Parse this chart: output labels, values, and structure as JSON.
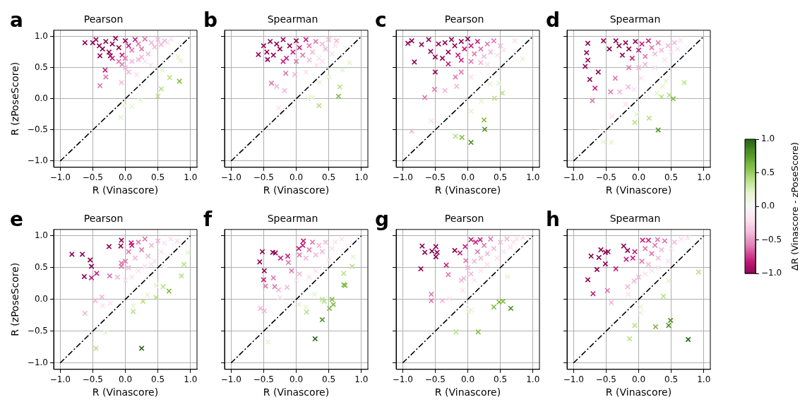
{
  "chart_data": [
    {
      "type": "scatter",
      "title": "Pearson",
      "annotations": [
        "a"
      ],
      "xlabel": "R (Vinascore)",
      "ylabel": "R (zPoseScore)",
      "xlim": [
        -1.1,
        1.1
      ],
      "ylim": [
        -1.1,
        1.1
      ],
      "xticks": [
        {
          "value": -1,
          "label": "−1.0"
        },
        {
          "value": -0.5,
          "label": "−0.5"
        },
        {
          "value": 0,
          "label": "0.0"
        },
        {
          "value": 0.5,
          "label": "0.5"
        },
        {
          "value": 1,
          "label": "1.0"
        }
      ],
      "yticks": [
        {
          "value": -1,
          "label": "−1.0"
        },
        {
          "value": -0.5,
          "label": "−0.5"
        },
        {
          "value": 0,
          "label": "0.0"
        },
        0.5,
        {
          "value": 1,
          "label": "1.0"
        }
      ],
      "grid": true,
      "series": [
        {
          "marker": "cross",
          "x": [
            -0.62,
            -0.39,
            -0.31,
            -0.3,
            -0.39,
            -0.23,
            -0.06,
            0.05,
            0.17,
            0.25,
            0.23,
            0.1,
            -0.01,
            -0.07,
            -0.26,
            0.5,
            0.55,
            0.68,
            0.83,
            0.85,
            0.81,
            0.57,
            0.39,
            0.25,
            0.83,
            -0.5,
            -0.45,
            -0.4,
            -0.35,
            -0.3,
            -0.25,
            -0.2,
            -0.15,
            -0.1,
            -0.05,
            0,
            0.05,
            0.1,
            0.15,
            0.2,
            0.25,
            0.3,
            0.35,
            0.4,
            0.45,
            0.5,
            0.55,
            0.6,
            0.65,
            0.7,
            -0.2,
            -0.1,
            0,
            0.1,
            0.2,
            0.3,
            -0.05,
            0
          ],
          "values": [
            0.9,
            0.69,
            0.46,
            0.35,
            0.21,
            0.69,
            0.26,
            0.43,
            0.39,
            0.2,
            -0.02,
            -0.12,
            -0.11,
            -0.3,
            -0.24,
            0.04,
            0.16,
            0.34,
            0.28,
            0.61,
            0.67,
            0.46,
            0.54,
            0.67,
            0.87,
            0.9,
            0.95,
            0.85,
            0.8,
            0.92,
            0.75,
            0.88,
            0.97,
            0.82,
            0.7,
            0.93,
            0.85,
            0.78,
            0.95,
            0.88,
            0.8,
            0.96,
            0.72,
            0.9,
            0.83,
            0.95,
            0.87,
            0.93,
            0.9,
            0.96,
            0.65,
            0.6,
            0.65,
            0.6,
            0.63,
            0.6,
            0.55,
            0.5
          ],
          "colors": [
            "#8e0152",
            "#8e0152",
            "#c51b7d",
            "#de77ae",
            "#de77ae",
            "#8e0152",
            "#f1b6da",
            "#f1b6da",
            "#fde0ef",
            "#f7f7f7",
            "#e6f5d0",
            "#e6f5d0",
            "#e6f5d0",
            "#e6f5d0",
            "#f7f7f7",
            "#b8e186",
            "#b8e186",
            "#b8e186",
            "#7fbc41",
            "#e6f5d0",
            "#e6f5d0",
            "#e6f5d0",
            "#fde0ef",
            "#f1b6da",
            "#f7f7f7",
            "#8e0152",
            "#8e0152",
            "#8e0152",
            "#8e0152",
            "#8e0152",
            "#8e0152",
            "#8e0152",
            "#8e0152",
            "#8e0152",
            "#c51b7d",
            "#8e0152",
            "#c51b7d",
            "#de77ae",
            "#c51b7d",
            "#de77ae",
            "#de77ae",
            "#de77ae",
            "#f1b6da",
            "#f1b6da",
            "#f1b6da",
            "#f1b6da",
            "#f1b6da",
            "#f1b6da",
            "#fde0ef",
            "#fde0ef",
            "#c51b7d",
            "#de77ae",
            "#de77ae",
            "#f1b6da",
            "#f1b6da",
            "#fde0ef",
            "#de77ae",
            "#f1b6da"
          ]
        },
        {
          "type": "line",
          "marker": "none",
          "x": [
            -1,
            1
          ],
          "values": [
            -1,
            1
          ],
          "color": "#000000",
          "line_style": "dashed"
        }
      ]
    },
    {
      "type": "scatter",
      "title": "Spearman",
      "annotations": [
        "b"
      ],
      "xlabel": "R (Vinascore)",
      "xlim": [
        -1.1,
        1.1
      ],
      "ylim": [
        -1.1,
        1.1
      ],
      "tick_labels": "x",
      "xticks": [
        {
          "value": -1,
          "label": "−1.0"
        },
        {
          "value": -0.5,
          "label": "−0.5"
        },
        {
          "value": 0,
          "label": "0.0"
        },
        {
          "value": 0.5,
          "label": "0.5"
        },
        {
          "value": 1,
          "label": "1.0"
        }
      ],
      "yticks": [
        -1,
        -0.5,
        0,
        0.5,
        1
      ],
      "grid": true,
      "series": [
        {
          "marker": "cross",
          "x": [
            -0.58,
            -0.44,
            -0.38,
            -0.3,
            -0.18,
            -0.16,
            -0.27,
            0.04,
            0.18,
            0.25,
            0.35,
            0.36,
            0.51,
            0.67,
            0.65,
            0.71,
            0.82,
            -0.02,
            0.15,
            0.31,
            0.62,
            0.75,
            -0.5,
            -0.45,
            -0.4,
            -0.35,
            -0.3,
            -0.25,
            -0.2,
            -0.15,
            -0.1,
            -0.05,
            0,
            0.05,
            0.1,
            0.15,
            0.2,
            0.25,
            0.3,
            0.35,
            0.4,
            0.45,
            0.5,
            0.55,
            0.6,
            -0.2,
            0,
            0.2,
            0.4
          ],
          "values": [
            0.71,
            0.63,
            0.25,
            0.2,
            0.13,
            0.41,
            -0.15,
            -0.04,
            0,
            0.02,
            -0.11,
            0.26,
            0.35,
            0.19,
            0.04,
            0.46,
            0.58,
            0.39,
            0.43,
            0.54,
            0.93,
            0.81,
            0.85,
            0.75,
            0.92,
            0.7,
            0.88,
            0.8,
            0.95,
            0.65,
            0.85,
            0.75,
            0.93,
            0.82,
            0.7,
            0.95,
            0.85,
            0.75,
            0.92,
            0.65,
            0.88,
            0.8,
            0.95,
            0.72,
            0.85,
            0.6,
            0.6,
            0.62,
            0.6
          ],
          "colors": [
            "#8e0152",
            "#8e0152",
            "#de77ae",
            "#f1b6da",
            "#f1b6da",
            "#de77ae",
            "#fde0ef",
            "#f7f7f7",
            "#e6f5d0",
            "#e6f5d0",
            "#b8e186",
            "#e6f5d0",
            "#e6f5d0",
            "#b8e186",
            "#7fbc41",
            "#e6f5d0",
            "#e6f5d0",
            "#f1b6da",
            "#fde0ef",
            "#fde0ef",
            "#f1b6da",
            "#f7f7f7",
            "#8e0152",
            "#8e0152",
            "#8e0152",
            "#8e0152",
            "#8e0152",
            "#8e0152",
            "#8e0152",
            "#c51b7d",
            "#8e0152",
            "#c51b7d",
            "#8e0152",
            "#c51b7d",
            "#de77ae",
            "#c51b7d",
            "#de77ae",
            "#f1b6da",
            "#de77ae",
            "#fde0ef",
            "#f1b6da",
            "#f1b6da",
            "#f1b6da",
            "#fde0ef",
            "#fde0ef",
            "#c51b7d",
            "#de77ae",
            "#f1b6da",
            "#fde0ef"
          ]
        },
        {
          "type": "line",
          "marker": "none",
          "x": [
            -1,
            1
          ],
          "values": [
            -1,
            1
          ],
          "color": "#000000",
          "line_style": "dashed"
        }
      ]
    },
    {
      "type": "scatter",
      "title": "Pearson",
      "annotations": [
        "c"
      ],
      "xlabel": "R (Vinascore)",
      "xlim": [
        -1.1,
        1.1
      ],
      "ylim": [
        -1.1,
        1.1
      ],
      "tick_labels": "x",
      "xticks": [
        {
          "value": -1,
          "label": "−1.0"
        },
        {
          "value": -0.5,
          "label": "−0.5"
        },
        {
          "value": 0,
          "label": "0.0"
        },
        {
          "value": 0.5,
          "label": "0.5"
        },
        {
          "value": 1,
          "label": "1.0"
        }
      ],
      "yticks": [
        -1,
        -0.5,
        0,
        0.5,
        1
      ],
      "grid": true,
      "series": [
        {
          "marker": "cross",
          "x": [
            -0.92,
            -0.86,
            -0.71,
            -0.82,
            -0.57,
            -0.5,
            -0.5,
            -0.51,
            -0.66,
            -0.35,
            -0.17,
            -0.19,
            -0.1,
            0.05,
            0.16,
            0.34,
            0.48,
            0.53,
            0.41,
            0.21,
            0.05,
            0.25,
            0.26,
            0.05,
            -0.09,
            -0.19,
            -0.56,
            -0.86,
            0.84,
            0.72,
            -0.3,
            -0.39,
            -0.35,
            -0.3,
            -0.25,
            -0.2,
            -0.15,
            -0.1,
            -0.05,
            0,
            0.05,
            0.1,
            0.15,
            0.2,
            0.25,
            0.3,
            0.35,
            0.4,
            0.45,
            0.5,
            0.55,
            -0.1,
            0.05,
            0.2,
            0.3,
            -0.6,
            -0.45
          ],
          "values": [
            0.89,
            0.93,
            0.87,
            0.59,
            0.76,
            0.67,
            0.43,
            0.15,
            0.02,
            0.13,
            0.2,
            0.35,
            0.43,
            0.35,
            0.22,
            0.24,
            0.25,
            0.09,
            0.01,
            -0.04,
            -0.2,
            -0.34,
            -0.49,
            -0.7,
            -0.62,
            -0.6,
            -0.35,
            -0.52,
            0.64,
            0.93,
            0.56,
            0.65,
            0.9,
            0.75,
            0.95,
            0.85,
            0.7,
            0.92,
            0.8,
            0.96,
            0.85,
            0.72,
            0.92,
            0.8,
            0.68,
            0.88,
            0.75,
            0.93,
            0.7,
            0.85,
            0.78,
            0.62,
            0.6,
            0.58,
            0.55,
            0.95,
            0.88
          ],
          "colors": [
            "#8e0152",
            "#8e0152",
            "#8e0152",
            "#8e0152",
            "#8e0152",
            "#8e0152",
            "#8e0152",
            "#de77ae",
            "#de77ae",
            "#f1b6da",
            "#f1b6da",
            "#de77ae",
            "#de77ae",
            "#fde0ef",
            "#f7f7f7",
            "#e6f5d0",
            "#e6f5d0",
            "#b8e186",
            "#b8e186",
            "#e6f5d0",
            "#e6f5d0",
            "#7fbc41",
            "#4d9221",
            "#4d9221",
            "#7fbc41",
            "#b8e186",
            "#fde0ef",
            "#f1b6da",
            "#e6f5d0",
            "#fde0ef",
            "#c51b7d",
            "#8e0152",
            "#8e0152",
            "#8e0152",
            "#8e0152",
            "#8e0152",
            "#c51b7d",
            "#8e0152",
            "#c51b7d",
            "#8e0152",
            "#c51b7d",
            "#de77ae",
            "#c51b7d",
            "#de77ae",
            "#f1b6da",
            "#de77ae",
            "#f1b6da",
            "#de77ae",
            "#fde0ef",
            "#f1b6da",
            "#fde0ef",
            "#c51b7d",
            "#de77ae",
            "#f1b6da",
            "#fde0ef",
            "#8e0152",
            "#8e0152"
          ]
        },
        {
          "type": "line",
          "marker": "none",
          "x": [
            -1,
            1
          ],
          "values": [
            -1,
            1
          ],
          "color": "#000000",
          "line_style": "dashed"
        }
      ]
    },
    {
      "type": "scatter",
      "title": "Spearman",
      "annotations": [
        "d"
      ],
      "xlabel": "R (Vinascore)",
      "xlim": [
        -1.1,
        1.1
      ],
      "ylim": [
        -1.1,
        1.1
      ],
      "tick_labels": "x",
      "xticks": [
        {
          "value": -1,
          "label": "−1.0"
        },
        {
          "value": -0.5,
          "label": "−0.5"
        },
        {
          "value": 0,
          "label": "0.0"
        },
        {
          "value": 0.5,
          "label": "0.5"
        },
        {
          "value": 1,
          "label": "1.0"
        }
      ],
      "yticks": [
        -1,
        -0.5,
        0,
        0.5,
        1
      ],
      "grid": true,
      "series": [
        {
          "marker": "cross",
          "x": [
            -0.78,
            -0.8,
            -0.78,
            -0.82,
            -0.62,
            -0.75,
            -0.67,
            -0.71,
            -0.54,
            -0.36,
            -0.43,
            -0.29,
            -0.16,
            -0.07,
            0.04,
            -0.2,
            -0.41,
            -0.56,
            -0.54,
            -0.42,
            -0.06,
            -0.03,
            0.16,
            0.3,
            0.13,
            0.28,
            0.35,
            0.47,
            0.53,
            0.42,
            0.37,
            0.7,
            0.64,
            0.75,
            -0.3,
            -0.25,
            -0.2,
            -0.15,
            -0.1,
            -0.05,
            0,
            0.05,
            0.1,
            0.15,
            0.2,
            0.25,
            0.3,
            0.35,
            0.4,
            0.45,
            0.5,
            0.55,
            0.6,
            -0.15,
            0,
            0.1,
            0.25,
            -0.35,
            -0.45
          ],
          "values": [
            0.89,
            0.74,
            0.62,
            0.52,
            0.43,
            0.31,
            0.17,
            -0.03,
            0.93,
            0.33,
            0.11,
            0.11,
            0.19,
            0.15,
            0.33,
            -0.09,
            -0.28,
            -0.46,
            -0.69,
            -0.7,
            -0.38,
            -0.25,
            -0.31,
            -0.5,
            0.06,
            0.09,
            0.03,
            0.06,
            0,
            0.28,
            0.2,
            0.26,
            0.94,
            0.83,
            0.85,
            0.7,
            0.9,
            0.8,
            0.65,
            0.92,
            0.78,
            0.88,
            0.68,
            0.93,
            0.82,
            0.72,
            0.9,
            0.78,
            0.62,
            0.85,
            0.75,
            0.9,
            0.8,
            0.5,
            0.5,
            0.55,
            0.5,
            0.93,
            0.8
          ],
          "colors": [
            "#8e0152",
            "#8e0152",
            "#8e0152",
            "#8e0152",
            "#8e0152",
            "#8e0152",
            "#c51b7d",
            "#de77ae",
            "#8e0152",
            "#de77ae",
            "#de77ae",
            "#f1b6da",
            "#f1b6da",
            "#fde0ef",
            "#fde0ef",
            "#fde0ef",
            "#fde0ef",
            "#f7f7f7",
            "#e6f5d0",
            "#e6f5d0",
            "#b8e186",
            "#e6f5d0",
            "#b8e186",
            "#4d9221",
            "#f7f7f7",
            "#e6f5d0",
            "#b8e186",
            "#b8e186",
            "#7fbc41",
            "#e6f5d0",
            "#e6f5d0",
            "#b8e186",
            "#fde0ef",
            "#f7f7f7",
            "#8e0152",
            "#8e0152",
            "#8e0152",
            "#8e0152",
            "#c51b7d",
            "#8e0152",
            "#c51b7d",
            "#c51b7d",
            "#de77ae",
            "#c51b7d",
            "#de77ae",
            "#f1b6da",
            "#de77ae",
            "#f1b6da",
            "#fde0ef",
            "#f1b6da",
            "#fde0ef",
            "#f1b6da",
            "#fde0ef",
            "#de77ae",
            "#f1b6da",
            "#f1b6da",
            "#fde0ef",
            "#8e0152",
            "#8e0152"
          ]
        },
        {
          "type": "line",
          "marker": "none",
          "x": [
            -1,
            1
          ],
          "values": [
            -1,
            1
          ],
          "color": "#000000",
          "line_style": "dashed"
        }
      ]
    },
    {
      "type": "scatter",
      "title": "Pearson",
      "annotations": [
        "e"
      ],
      "xlabel": "R (Vinascore)",
      "ylabel": "R (zPoseScore)",
      "xlim": [
        -1.1,
        1.1
      ],
      "ylim": [
        -1.1,
        1.1
      ],
      "xticks": [
        {
          "value": -1,
          "label": "−1.0"
        },
        {
          "value": -0.5,
          "label": "−0.5"
        },
        {
          "value": 0,
          "label": "0.0"
        },
        {
          "value": 0.5,
          "label": "0.5"
        },
        {
          "value": 1,
          "label": "1.0"
        }
      ],
      "yticks": [
        {
          "value": -1,
          "label": "−1.0"
        },
        {
          "value": -0.5,
          "label": "−0.5"
        },
        {
          "value": 0,
          "label": "0.0"
        },
        0.5,
        {
          "value": 1,
          "label": "1.0"
        }
      ],
      "grid": true,
      "series": [
        {
          "marker": "cross",
          "x": [
            -0.82,
            -0.66,
            -0.54,
            -0.52,
            -0.63,
            -0.52,
            -0.44,
            -0.25,
            -0.06,
            -0.07,
            -0.24,
            -0.12,
            -0.06,
            -0.06,
            0.09,
            -0.46,
            -0.36,
            -0.35,
            -0.23,
            -0.62,
            -0.32,
            -0.3,
            -0.45,
            0.25,
            0.12,
            0.12,
            -0.04,
            0.27,
            0.34,
            0.47,
            0.47,
            0.58,
            0.67,
            0.86,
            0.9,
            0.96,
            0.61,
            0.39,
            0,
            0.05,
            0.1,
            0.15,
            0.2,
            0.25,
            0.3,
            0.35,
            0.4,
            0.45,
            0.5,
            0.55,
            0.6,
            0.65,
            0.7,
            0.75,
            0.8,
            0.05,
            0.2,
            0.3,
            0.4,
            0.1,
            0.15,
            0
          ],
          "values": [
            0.71,
            0.71,
            0.62,
            0.52,
            0.36,
            0.34,
            0.41,
            0.83,
            0.93,
            0.84,
            0.37,
            0.35,
            0.52,
            0.57,
            0.89,
            -0.02,
            0.04,
            -0.1,
            -0.06,
            -0.22,
            -0.41,
            -0.52,
            -0.77,
            -0.77,
            -0.19,
            -0.1,
            -0.13,
            -0.03,
            0.07,
            0.03,
            0.22,
            0.2,
            0.13,
            0.37,
            0.55,
            0.74,
            0.52,
            0.41,
            0.6,
            0.75,
            0.85,
            0.65,
            0.9,
            0.78,
            0.95,
            0.68,
            0.85,
            0.6,
            0.92,
            0.75,
            0.88,
            0.7,
            0.95,
            0.85,
            0.92,
            0.5,
            0.45,
            0.52,
            0.55,
            0.35,
            0.2,
            0.3
          ],
          "colors": [
            "#8e0152",
            "#8e0152",
            "#8e0152",
            "#8e0152",
            "#8e0152",
            "#c51b7d",
            "#c51b7d",
            "#8e0152",
            "#8e0152",
            "#8e0152",
            "#de77ae",
            "#f1b6da",
            "#de77ae",
            "#de77ae",
            "#c51b7d",
            "#f1b6da",
            "#f1b6da",
            "#fde0ef",
            "#fde0ef",
            "#f1b6da",
            "#f7f7f7",
            "#e6f5d0",
            "#b8e186",
            "#276419",
            "#b8e186",
            "#e6f5d0",
            "#f7f7f7",
            "#b8e186",
            "#e6f5d0",
            "#b8e186",
            "#e6f5d0",
            "#b8e186",
            "#7fbc41",
            "#b8e186",
            "#b8e186",
            "#e6f5d0",
            "#f7f7f7",
            "#f7f7f7",
            "#de77ae",
            "#de77ae",
            "#c51b7d",
            "#f1b6da",
            "#de77ae",
            "#de77ae",
            "#de77ae",
            "#f1b6da",
            "#f1b6da",
            "#fde0ef",
            "#f1b6da",
            "#fde0ef",
            "#fde0ef",
            "#f7f7f7",
            "#fde0ef",
            "#f7f7f7",
            "#fde0ef",
            "#f1b6da",
            "#fde0ef",
            "#fde0ef",
            "#fde0ef",
            "#fde0ef",
            "#f7f7f7",
            "#fde0ef"
          ]
        },
        {
          "type": "line",
          "marker": "none",
          "x": [
            -1,
            1
          ],
          "values": [
            -1,
            1
          ],
          "color": "#000000",
          "line_style": "dashed"
        }
      ]
    },
    {
      "type": "scatter",
      "title": "Spearman",
      "annotations": [
        "f"
      ],
      "xlabel": "R (Vinascore)",
      "xlim": [
        -1.1,
        1.1
      ],
      "ylim": [
        -1.1,
        1.1
      ],
      "tick_labels": "x",
      "xticks": [
        {
          "value": -1,
          "label": "−1.0"
        },
        {
          "value": -0.5,
          "label": "−0.5"
        },
        {
          "value": 0,
          "label": "0.0"
        },
        {
          "value": 0.5,
          "label": "0.5"
        },
        {
          "value": 1,
          "label": "1.0"
        }
      ],
      "yticks": [
        -1,
        -0.5,
        0,
        0.5,
        1
      ],
      "grid": true,
      "series": [
        {
          "marker": "cross",
          "x": [
            -0.56,
            -0.52,
            -0.36,
            -0.32,
            -0.24,
            -0.49,
            -0.5,
            -0.47,
            -0.35,
            -0.33,
            -0.27,
            -0.25,
            -0.55,
            -0.49,
            -0.33,
            -0.43,
            -0.13,
            -0.12,
            -0.07,
            -0.14,
            0.11,
            0.04,
            -0.16,
            0.04,
            0.15,
            0.16,
            0.28,
            0.4,
            0.43,
            0.4,
            0.29,
            0.51,
            0.57,
            0.55,
            0.73,
            0.75,
            0.73,
            0.86,
            0.87,
            0.8,
            0.05,
            0.1,
            0.15,
            0.2,
            0.25,
            0.3,
            0.35,
            0.4,
            0.45,
            0.5,
            0.55,
            0.6,
            0.7,
            0,
            0.05,
            0.2,
            0.3,
            0.4
          ],
          "values": [
            0.59,
            0.75,
            0.74,
            0.73,
            0.65,
            0.45,
            0.31,
            0.21,
            0.34,
            0.2,
            0.15,
            0.03,
            -0.14,
            -0.18,
            -0.41,
            -0.67,
            0.68,
            0.58,
            0.45,
            0.19,
            0.92,
            0.8,
            -0.08,
            -0.08,
            -0.12,
            -0.2,
            0.08,
            0,
            -0.03,
            -0.32,
            -0.62,
            -0.14,
            -0.08,
            0,
            0.23,
            0.22,
            0.41,
            0.52,
            0.67,
            0.87,
            0.7,
            0.85,
            0.65,
            0.78,
            0.9,
            0.7,
            0.85,
            0.75,
            0.9,
            0.62,
            0.8,
            0.9,
            0.95,
            0.3,
            0.4,
            0.35,
            0.45,
            0.5
          ],
          "colors": [
            "#8e0152",
            "#8e0152",
            "#8e0152",
            "#8e0152",
            "#c51b7d",
            "#8e0152",
            "#c51b7d",
            "#de77ae",
            "#de77ae",
            "#de77ae",
            "#f1b6da",
            "#fde0ef",
            "#f1b6da",
            "#f1b6da",
            "#f7f7f7",
            "#e6f5d0",
            "#c51b7d",
            "#de77ae",
            "#de77ae",
            "#f1b6da",
            "#c51b7d",
            "#c51b7d",
            "#f7f7f7",
            "#e6f5d0",
            "#e6f5d0",
            "#b8e186",
            "#e6f5d0",
            "#b8e186",
            "#b8e186",
            "#4d9221",
            "#276419",
            "#7fbc41",
            "#7fbc41",
            "#7fbc41",
            "#7fbc41",
            "#7fbc41",
            "#b8e186",
            "#b8e186",
            "#e6f5d0",
            "#f7f7f7",
            "#de77ae",
            "#c51b7d",
            "#f1b6da",
            "#de77ae",
            "#de77ae",
            "#f1b6da",
            "#f1b6da",
            "#f1b6da",
            "#f1b6da",
            "#fde0ef",
            "#fde0ef",
            "#fde0ef",
            "#fde0ef",
            "#fde0ef",
            "#f1b6da",
            "#fde0ef",
            "#fde0ef",
            "#f7f7f7"
          ]
        },
        {
          "type": "line",
          "marker": "none",
          "x": [
            -1,
            1
          ],
          "values": [
            -1,
            1
          ],
          "color": "#000000",
          "line_style": "dashed"
        }
      ]
    },
    {
      "type": "scatter",
      "title": "Pearson",
      "annotations": [
        "g"
      ],
      "xlabel": "R (Vinascore)",
      "xlim": [
        -1.1,
        1.1
      ],
      "ylim": [
        -1.1,
        1.1
      ],
      "tick_labels": "x",
      "xticks": [
        {
          "value": -1,
          "label": "−1.0"
        },
        {
          "value": -0.5,
          "label": "−0.5"
        },
        {
          "value": 0,
          "label": "0.0"
        },
        {
          "value": 0.5,
          "label": "0.5"
        },
        {
          "value": 1,
          "label": "1.0"
        }
      ],
      "yticks": [
        -1,
        -0.5,
        0,
        0.5,
        1
      ],
      "grid": true,
      "series": [
        {
          "marker": "cross",
          "x": [
            -0.7,
            -0.66,
            -0.72,
            -0.55,
            -0.49,
            -0.47,
            -0.49,
            -0.33,
            -0.3,
            -0.2,
            -0.12,
            -0.04,
            -0.03,
            -0.56,
            -0.56,
            -0.39,
            -0.28,
            -0.06,
            -0.08,
            -0.03,
            0.01,
            0.05,
            -0.18,
            0.16,
            0.4,
            0.48,
            0.54,
            0.66,
            0.61,
            0.41,
            0.05,
            0.12,
            0.19,
            0.15,
            0.2,
            0.25,
            0.3,
            0.35,
            0.4,
            0.45,
            0.5,
            0.55,
            0.6,
            0.65,
            0.7,
            0.75,
            0.85,
            0,
            0.05,
            0.1,
            0.2,
            0.3,
            -0.1,
            0.1
          ],
          "values": [
            0.84,
            0.74,
            0.48,
            0.76,
            0.83,
            0.74,
            0.67,
            0.54,
            0.39,
            0.77,
            0.73,
            0.83,
            0.61,
            0.08,
            -0.02,
            -0.02,
            0.01,
            0.33,
            0.14,
            -0.12,
            -0.19,
            -0.17,
            -0.51,
            -0.51,
            -0.12,
            -0.04,
            -0.03,
            -0.14,
            0.36,
            0.35,
            0.94,
            0.9,
            0.94,
            0.75,
            0.65,
            0.85,
            0.72,
            0.95,
            0.8,
            0.65,
            0.9,
            0.75,
            0.95,
            0.82,
            0.9,
            0.95,
            0.97,
            0.5,
            0.4,
            0.3,
            0.45,
            0.55,
            0.3,
            0.6
          ],
          "colors": [
            "#8e0152",
            "#8e0152",
            "#8e0152",
            "#8e0152",
            "#8e0152",
            "#8e0152",
            "#8e0152",
            "#c51b7d",
            "#de77ae",
            "#8e0152",
            "#c51b7d",
            "#c51b7d",
            "#de77ae",
            "#de77ae",
            "#de77ae",
            "#f1b6da",
            "#fde0ef",
            "#f1b6da",
            "#fde0ef",
            "#f7f7f7",
            "#e6f5d0",
            "#e6f5d0",
            "#b8e186",
            "#7fbc41",
            "#7fbc41",
            "#7fbc41",
            "#7fbc41",
            "#4d9221",
            "#e6f5d0",
            "#f7f7f7",
            "#c51b7d",
            "#c51b7d",
            "#c51b7d",
            "#de77ae",
            "#f1b6da",
            "#de77ae",
            "#f1b6da",
            "#de77ae",
            "#f1b6da",
            "#fde0ef",
            "#f1b6da",
            "#fde0ef",
            "#f1b6da",
            "#fde0ef",
            "#fde0ef",
            "#fde0ef",
            "#fde0ef",
            "#f1b6da",
            "#f1b6da",
            "#fde0ef",
            "#fde0ef",
            "#fde0ef",
            "#f1b6da",
            "#f1b6da"
          ]
        },
        {
          "type": "line",
          "marker": "none",
          "x": [
            -1,
            1
          ],
          "values": [
            -1,
            1
          ],
          "color": "#000000",
          "line_style": "dashed"
        }
      ]
    },
    {
      "type": "scatter",
      "title": "Spearman",
      "annotations": [
        "h"
      ],
      "xlabel": "R (Vinascore)",
      "xlim": [
        -1.1,
        1.1
      ],
      "ylim": [
        -1.1,
        1.1
      ],
      "tick_labels": "x",
      "xticks": [
        {
          "value": -1,
          "label": "−1.0"
        },
        {
          "value": -0.5,
          "label": "−0.5"
        },
        {
          "value": 0,
          "label": "0.0"
        },
        {
          "value": 0.5,
          "label": "0.5"
        },
        {
          "value": 1,
          "label": "1.0"
        }
      ],
      "yticks": [
        -1,
        -0.5,
        0,
        0.5,
        1
      ],
      "grid": true,
      "clabel": "ΔR (Vinascore - zPoseScore)",
      "clim": [
        -1,
        1
      ],
      "cticks": [
        {
          "value": -1,
          "label": "−1.0"
        },
        {
          "value": -0.5,
          "label": "−0.5"
        },
        {
          "value": 0,
          "label": "0.0"
        },
        0.5,
        {
          "value": 1,
          "label": "1.0"
        }
      ],
      "series": [
        {
          "marker": "cross",
          "x": [
            -0.78,
            -0.7,
            -0.73,
            -0.64,
            -0.61,
            -0.58,
            -0.51,
            -0.47,
            -0.51,
            -0.35,
            -0.23,
            -0.17,
            -0.19,
            -0.09,
            -0.06,
            0.06,
            0.15,
            -0.48,
            -0.42,
            -0.17,
            -0.16,
            -0.07,
            0.03,
            0.03,
            -0.06,
            -0.14,
            0.26,
            0.46,
            0.49,
            0.76,
            0.38,
            0.46,
            0.92,
            0.29,
            0.05,
            0.1,
            0.15,
            0.2,
            0.25,
            0.3,
            0.35,
            0.4,
            0.45,
            0.5,
            0.55,
            0.65,
            0.75,
            0.1,
            0.2,
            0.3,
            0
          ],
          "values": [
            0.31,
            0.09,
            0.68,
            0.47,
            0.66,
            0.78,
            0.74,
            0.75,
            0.56,
            0.48,
            0.84,
            0.77,
            0.63,
            0.65,
            0.75,
            0.93,
            0.93,
            0.14,
            -0.05,
            0.2,
            0.08,
            0.29,
            -0.12,
            -0.21,
            -0.41,
            -0.62,
            -0.43,
            -0.41,
            -0.33,
            -0.63,
            0.05,
            0.29,
            0.43,
            0.94,
            0.6,
            0.8,
            0.55,
            0.72,
            0.85,
            0.65,
            0.78,
            0.92,
            0.6,
            0.8,
            0.9,
            0.95,
            0.97,
            0.4,
            0.45,
            0.5,
            0.35
          ],
          "colors": [
            "#8e0152",
            "#c51b7d",
            "#8e0152",
            "#8e0152",
            "#8e0152",
            "#8e0152",
            "#8e0152",
            "#8e0152",
            "#8e0152",
            "#c51b7d",
            "#8e0152",
            "#8e0152",
            "#c51b7d",
            "#c51b7d",
            "#c51b7d",
            "#c51b7d",
            "#c51b7d",
            "#de77ae",
            "#f1b6da",
            "#f1b6da",
            "#fde0ef",
            "#f1b6da",
            "#e6f5d0",
            "#e6f5d0",
            "#b8e186",
            "#b8e186",
            "#7fbc41",
            "#4d9221",
            "#4d9221",
            "#276419",
            "#b8e186",
            "#e6f5d0",
            "#b8e186",
            "#de77ae",
            "#de77ae",
            "#de77ae",
            "#f1b6da",
            "#de77ae",
            "#de77ae",
            "#f1b6da",
            "#f1b6da",
            "#de77ae",
            "#fde0ef",
            "#fde0ef",
            "#f1b6da",
            "#fde0ef",
            "#fde0ef",
            "#fde0ef",
            "#fde0ef",
            "#fde0ef",
            "#f1b6da"
          ]
        },
        {
          "type": "line",
          "marker": "none",
          "x": [
            -1,
            1
          ],
          "values": [
            -1,
            1
          ],
          "color": "#000000",
          "line_style": "dashed"
        }
      ]
    }
  ]
}
